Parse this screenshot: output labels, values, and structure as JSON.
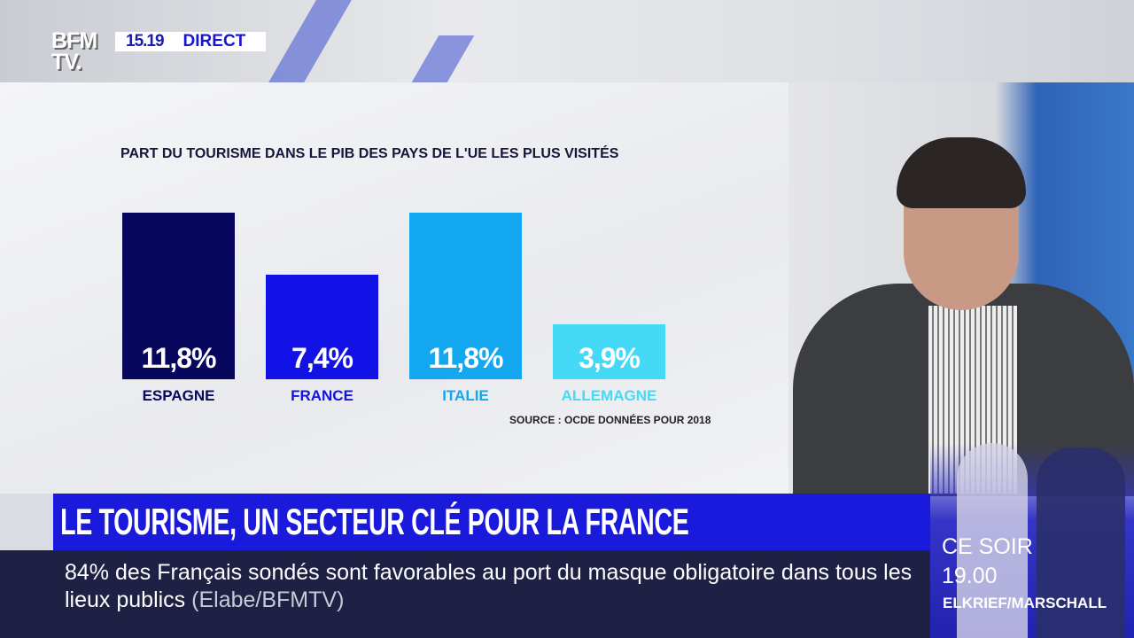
{
  "header": {
    "logo": "BFM TV.",
    "time": "15.19",
    "live_label": "DIRECT"
  },
  "chart_data": {
    "type": "bar",
    "title": "PART DU TOURISME DANS LE PIB DES PAYS DE L'UE LES PLUS VISITÉS",
    "categories": [
      "ESPAGNE",
      "FRANCE",
      "ITALIE",
      "ALLEMAGNE"
    ],
    "values": [
      11.8,
      7.4,
      11.8,
      3.9
    ],
    "value_labels": [
      "11,8%",
      "7,4%",
      "11,8%",
      "3,9%"
    ],
    "colors": [
      "#07075e",
      "#1212e6",
      "#13a7f0",
      "#45d9f8"
    ],
    "source": "SOURCE : OCDE DONNÉES POUR 2018",
    "unit": "%",
    "ylim": [
      0,
      11.8
    ],
    "grid": false
  },
  "banner": {
    "headline": "LE TOURISME, UN SECTEUR CLÉ POUR LA FRANCE"
  },
  "ticker": {
    "text": "84% des Français sondés sont favorables au port du masque obligatoire dans tous les lieux publics",
    "source": "(Elabe/BFMTV)"
  },
  "promo": {
    "line1": "CE SOIR",
    "line2": "19.00",
    "names": "ELKRIEF/MARSCHALL"
  }
}
